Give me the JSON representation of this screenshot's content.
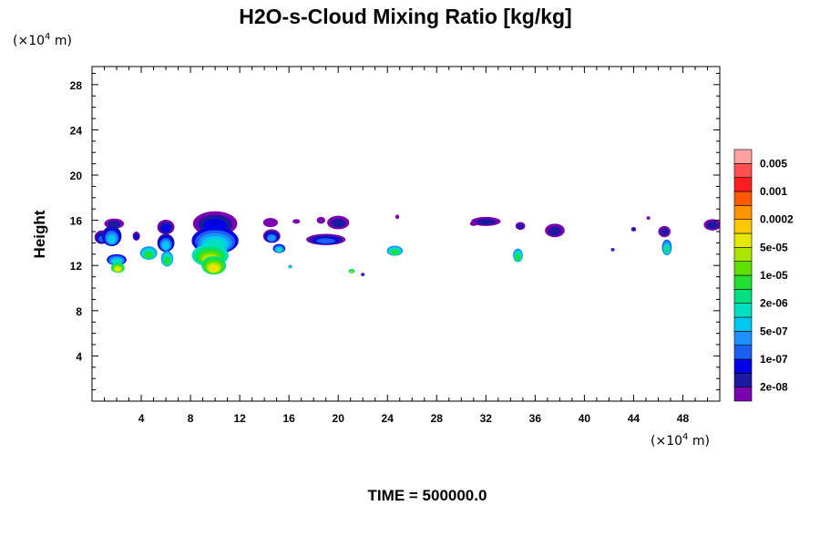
{
  "chart_data": {
    "type": "heatmap",
    "title": "H2O-s-Cloud Mixing Ratio [kg/kg]",
    "ylabel": "Height",
    "xlabel": "",
    "x_unit": {
      "prefix": "(×10",
      "exp": "4",
      "suffix": " m)"
    },
    "y_unit": {
      "prefix": "(×10",
      "exp": "4",
      "suffix": " m)"
    },
    "xlim": [
      0,
      51
    ],
    "ylim": [
      0,
      29.6
    ],
    "x_ticks": [
      4,
      8,
      12,
      16,
      20,
      24,
      28,
      32,
      36,
      40,
      44,
      48
    ],
    "x_tick_labels": [
      "4",
      "8",
      "12",
      "16",
      "20",
      "24",
      "28",
      "32",
      "36",
      "40",
      "44",
      "48"
    ],
    "y_ticks": [
      4,
      8,
      12,
      16,
      20,
      24,
      28
    ],
    "y_tick_labels": [
      "4",
      "8",
      "12",
      "16",
      "20",
      "24",
      "28"
    ],
    "colorbar": {
      "labels": [
        "2e-08",
        "1e-07",
        "5e-07",
        "2e-06",
        "1e-05",
        "5e-05",
        "0.0002",
        "0.001",
        "0.005"
      ],
      "colors": [
        "#7a00b0",
        "#1a1aa0",
        "#0000e6",
        "#1a5ff0",
        "#1e90ff",
        "#00c8f0",
        "#00e0c0",
        "#00e080",
        "#22e030",
        "#60e000",
        "#aae600",
        "#e6e600",
        "#ffc800",
        "#ff9600",
        "#ff5a00",
        "#ff1e1e",
        "#ff5050",
        "#ffa0a0"
      ]
    },
    "clouds": [
      {
        "x": 0.8,
        "y": 14.5,
        "w": 1.2,
        "h": 1.2,
        "level": 3
      },
      {
        "x": 1.8,
        "y": 15.7,
        "w": 1.6,
        "h": 0.9,
        "level": 1
      },
      {
        "x": 1.6,
        "y": 14.6,
        "w": 1.6,
        "h": 1.8,
        "level": 5
      },
      {
        "x": 2.0,
        "y": 12.5,
        "w": 1.6,
        "h": 1.0,
        "level": 6
      },
      {
        "x": 2.1,
        "y": 11.8,
        "w": 1.1,
        "h": 0.9,
        "level": 11
      },
      {
        "x": 3.6,
        "y": 14.6,
        "w": 0.6,
        "h": 0.8,
        "level": 2
      },
      {
        "x": 4.6,
        "y": 13.1,
        "w": 1.4,
        "h": 1.2,
        "level": 8
      },
      {
        "x": 6.0,
        "y": 15.4,
        "w": 1.4,
        "h": 1.3,
        "level": 2
      },
      {
        "x": 6.0,
        "y": 14.0,
        "w": 1.4,
        "h": 1.6,
        "level": 5
      },
      {
        "x": 6.1,
        "y": 12.6,
        "w": 1.0,
        "h": 1.4,
        "level": 8
      },
      {
        "x": 10.0,
        "y": 15.7,
        "w": 3.6,
        "h": 2.2,
        "level": 2
      },
      {
        "x": 10.0,
        "y": 14.2,
        "w": 3.8,
        "h": 2.4,
        "level": 6
      },
      {
        "x": 9.6,
        "y": 12.9,
        "w": 3.0,
        "h": 2.0,
        "level": 10
      },
      {
        "x": 9.9,
        "y": 12.0,
        "w": 2.0,
        "h": 1.6,
        "level": 11
      },
      {
        "x": 14.5,
        "y": 15.8,
        "w": 1.2,
        "h": 0.8,
        "level": 0
      },
      {
        "x": 14.6,
        "y": 14.6,
        "w": 1.4,
        "h": 1.2,
        "level": 4
      },
      {
        "x": 15.2,
        "y": 13.5,
        "w": 1.0,
        "h": 0.8,
        "level": 6
      },
      {
        "x": 16.6,
        "y": 15.9,
        "w": 0.6,
        "h": 0.4,
        "level": 0
      },
      {
        "x": 18.6,
        "y": 16.0,
        "w": 0.7,
        "h": 0.6,
        "level": 0
      },
      {
        "x": 20.0,
        "y": 15.8,
        "w": 1.8,
        "h": 1.2,
        "level": 1
      },
      {
        "x": 19.0,
        "y": 14.3,
        "w": 3.2,
        "h": 1.0,
        "level": 3
      },
      {
        "x": 24.6,
        "y": 13.3,
        "w": 1.3,
        "h": 0.9,
        "level": 8
      },
      {
        "x": 32.0,
        "y": 15.9,
        "w": 2.4,
        "h": 0.8,
        "level": 1
      },
      {
        "x": 31.0,
        "y": 15.7,
        "w": 0.6,
        "h": 0.4,
        "level": 0
      },
      {
        "x": 34.8,
        "y": 15.5,
        "w": 0.8,
        "h": 0.7,
        "level": 1
      },
      {
        "x": 34.6,
        "y": 12.9,
        "w": 0.8,
        "h": 1.2,
        "level": 8
      },
      {
        "x": 37.6,
        "y": 15.1,
        "w": 1.6,
        "h": 1.2,
        "level": 1
      },
      {
        "x": 46.5,
        "y": 15.0,
        "w": 1.0,
        "h": 1.0,
        "level": 1
      },
      {
        "x": 46.7,
        "y": 13.6,
        "w": 0.8,
        "h": 1.4,
        "level": 7
      },
      {
        "x": 50.4,
        "y": 15.6,
        "w": 1.4,
        "h": 1.0,
        "level": 1
      },
      {
        "x": 44.0,
        "y": 15.2,
        "w": 0.4,
        "h": 0.4,
        "level": 1
      },
      {
        "x": 42.3,
        "y": 13.4,
        "w": 0.3,
        "h": 0.3,
        "level": 3
      },
      {
        "x": 45.2,
        "y": 16.2,
        "w": 0.3,
        "h": 0.3,
        "level": 0
      },
      {
        "x": 24.8,
        "y": 16.3,
        "w": 0.3,
        "h": 0.4,
        "level": 0
      },
      {
        "x": 16.1,
        "y": 11.9,
        "w": 0.3,
        "h": 0.3,
        "level": 7
      },
      {
        "x": 21.1,
        "y": 11.5,
        "w": 0.5,
        "h": 0.4,
        "level": 10
      },
      {
        "x": 22.0,
        "y": 11.2,
        "w": 0.3,
        "h": 0.3,
        "level": 3
      }
    ]
  },
  "footer": {
    "time_label": "TIME = 500000.0"
  }
}
